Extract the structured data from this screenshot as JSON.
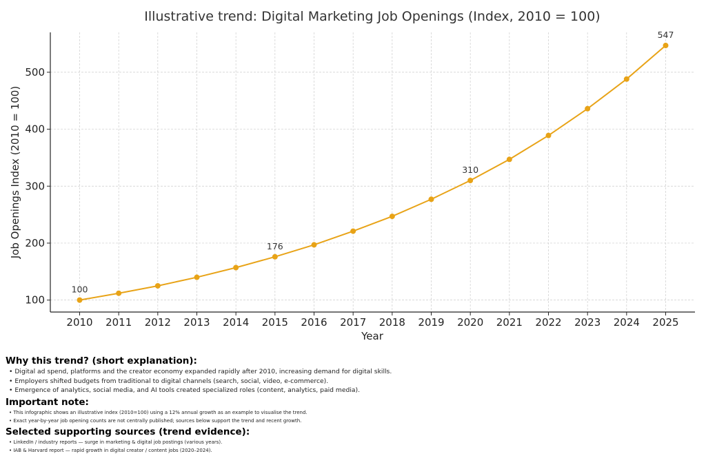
{
  "chart_data": {
    "type": "line",
    "title": "Illustrative trend: Digital Marketing Job Openings (Index, 2010 = 100)",
    "xlabel": "Year",
    "ylabel": "Job Openings Index (2010 = 100)",
    "x": [
      2010,
      2011,
      2012,
      2013,
      2014,
      2015,
      2016,
      2017,
      2018,
      2019,
      2020,
      2021,
      2022,
      2023,
      2024,
      2025
    ],
    "values": [
      100,
      112,
      125,
      140,
      157,
      176,
      197,
      221,
      247,
      277,
      310,
      347,
      389,
      436,
      488,
      547
    ],
    "xticks": [
      "2010",
      "2011",
      "2012",
      "2013",
      "2014",
      "2015",
      "2016",
      "2017",
      "2018",
      "2019",
      "2020",
      "2021",
      "2022",
      "2023",
      "2024",
      "2025"
    ],
    "yticks": [
      100,
      200,
      300,
      400,
      500
    ],
    "xlim": [
      2009.25,
      2025.75
    ],
    "ylim": [
      79,
      570
    ],
    "grid": true,
    "color": "#E8A317",
    "annotations": [
      {
        "x": 2010,
        "label": "100"
      },
      {
        "x": 2015,
        "label": "176"
      },
      {
        "x": 2020,
        "label": "310"
      },
      {
        "x": 2025,
        "label": "547"
      }
    ]
  },
  "notes": {
    "why_title": "Why this trend? (short explanation):",
    "why": [
      "• Digital ad spend, platforms and the creator economy expanded rapidly after 2010, increasing demand for digital skills.",
      "• Employers shifted budgets from traditional to digital channels (search, social, video, e-commerce).",
      "• Emergence of analytics, social media, and AI tools created specialized roles (content, analytics, paid media)."
    ],
    "note_title": "Important note:",
    "note": [
      "• This infographic shows an illustrative index (2010=100) using a 12% annual growth as an example to visualise the trend.",
      "• Exact year-by-year job opening counts are not centrally published; sources below support the trend and recent growth."
    ],
    "sources_title": "Selected supporting sources (trend evidence):",
    "sources": [
      "• LinkedIn / industry reports — surge in marketing & digital job postings (various years).",
      "• IAB & Harvard report — rapid growth in digital creator / content jobs (2020–2024)."
    ]
  }
}
